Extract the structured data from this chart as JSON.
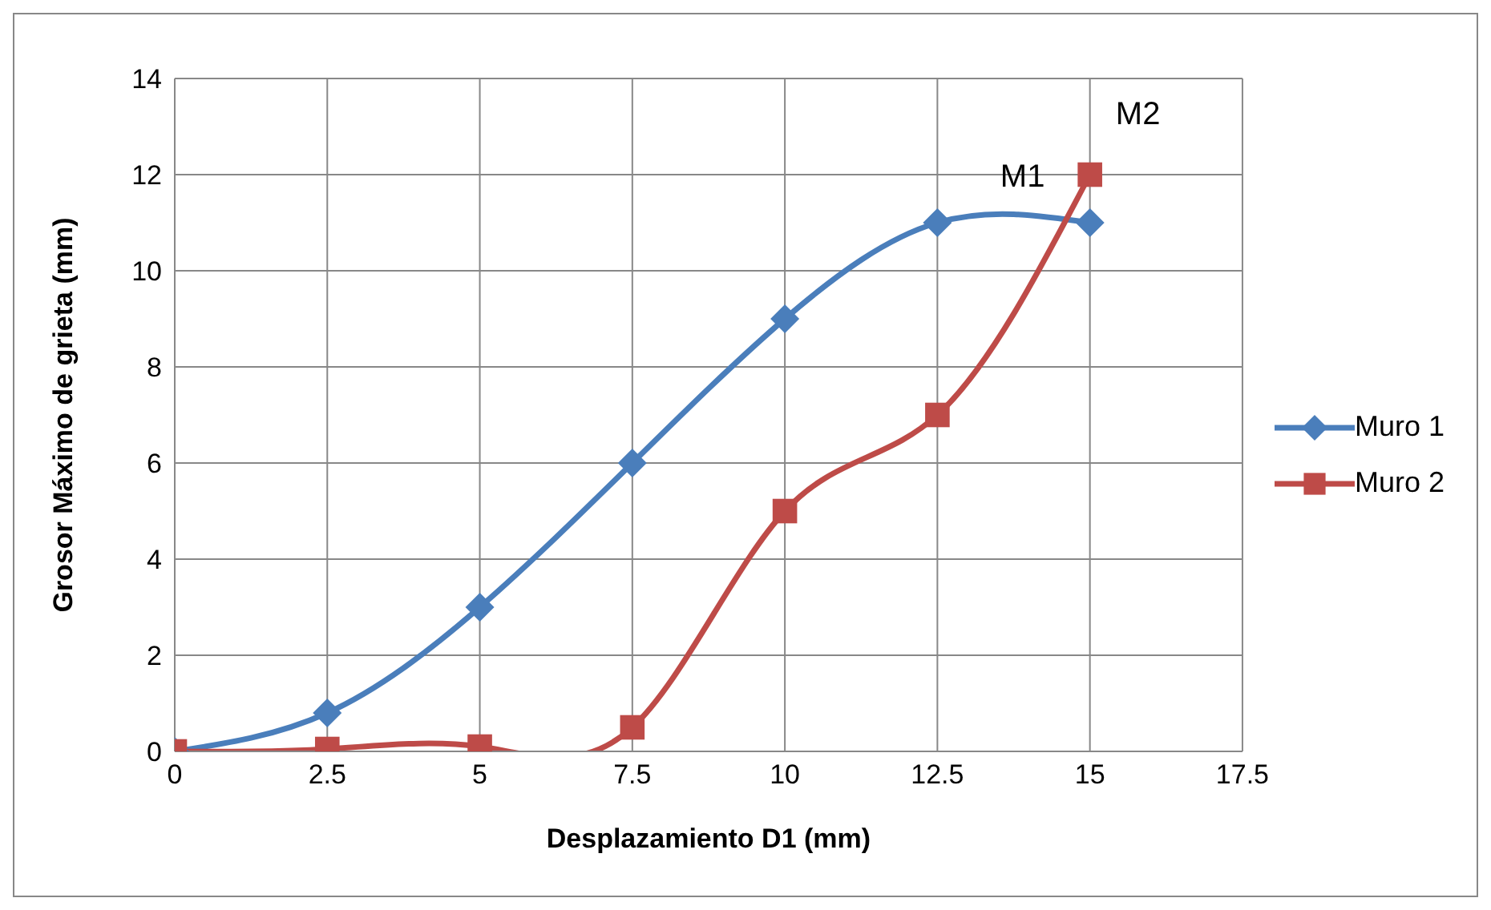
{
  "chart_data": {
    "type": "line",
    "xlabel": "Desplazamiento D1 (mm)",
    "ylabel": "Grosor Máximo de grieta (mm)",
    "xlim": [
      0,
      17.5
    ],
    "xticks": [
      0,
      2.5,
      5,
      7.5,
      10,
      12.5,
      15,
      17.5
    ],
    "ylim": [
      0,
      14
    ],
    "yticks": [
      0,
      2,
      4,
      6,
      8,
      10,
      12,
      14
    ],
    "x": [
      0,
      2.5,
      5,
      7.5,
      10,
      12.5,
      15
    ],
    "series": [
      {
        "name": "Muro 1",
        "color": "#4a7ebb",
        "marker": "diamond",
        "values": [
          0,
          0.8,
          3,
          6,
          9,
          11,
          11
        ]
      },
      {
        "name": "Muro 2",
        "color": "#be4b48",
        "marker": "square",
        "values": [
          0,
          0.05,
          0.1,
          0.5,
          5,
          7,
          12
        ]
      }
    ],
    "annotations": [
      "M1",
      "M2"
    ],
    "grid": true,
    "legend": "right"
  }
}
